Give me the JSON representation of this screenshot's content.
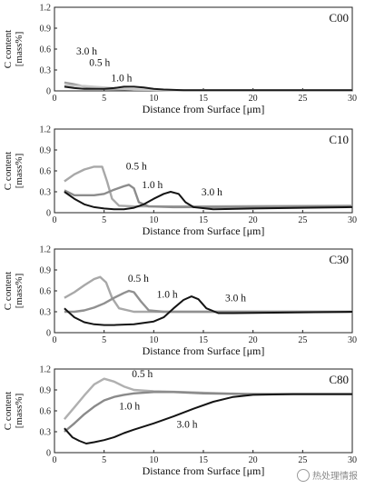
{
  "figure": {
    "watermark": "热处理情报"
  },
  "chart_data": [
    {
      "type": "line",
      "title": "C00",
      "xlabel": "Distance from Surface [μm]",
      "ylabel": [
        "C content",
        "[mass%]"
      ],
      "xlim": [
        0,
        30
      ],
      "ylim": [
        0,
        1.2
      ],
      "xticks": [
        0,
        5,
        10,
        15,
        20,
        25,
        30
      ],
      "yticks": [
        0,
        0.3,
        0.6,
        0.9,
        1.2
      ],
      "series": [
        {
          "name": "0.5 h",
          "color": "#9e9e9e",
          "points": [
            [
              1,
              0.12
            ],
            [
              1.8,
              0.1
            ],
            [
              2.5,
              0.08
            ],
            [
              3,
              0.06
            ],
            [
              3.5,
              0.05
            ],
            [
              4,
              0.04
            ],
            [
              5,
              0.03
            ],
            [
              8,
              0.02
            ],
            [
              12,
              0.01
            ],
            [
              30,
              0.01
            ]
          ]
        },
        {
          "name": "1.0 h",
          "color": "#c8c8c8",
          "points": [
            [
              1,
              0.08
            ],
            [
              2,
              0.07
            ],
            [
              3,
              0.07
            ],
            [
              4,
              0.06
            ],
            [
              5,
              0.05
            ],
            [
              6,
              0.04
            ],
            [
              8,
              0.02
            ],
            [
              12,
              0.01
            ],
            [
              30,
              0.01
            ]
          ]
        },
        {
          "name": "3.0 h",
          "color": "#1a1a1a",
          "points": [
            [
              1,
              0.06
            ],
            [
              2,
              0.04
            ],
            [
              3,
              0.03
            ],
            [
              4,
              0.03
            ],
            [
              5,
              0.03
            ],
            [
              6,
              0.04
            ],
            [
              7,
              0.06
            ],
            [
              8,
              0.06
            ],
            [
              9,
              0.05
            ],
            [
              10,
              0.03
            ],
            [
              11,
              0.02
            ],
            [
              13,
              0.01
            ],
            [
              30,
              0.01
            ]
          ]
        }
      ],
      "annotations": [
        {
          "text": "3.0 h",
          "x": 2.2,
          "y": 0.52
        },
        {
          "text": "0.5 h",
          "x": 3.5,
          "y": 0.36
        },
        {
          "text": "1.0 h",
          "x": 5.7,
          "y": 0.14
        }
      ]
    },
    {
      "type": "line",
      "title": "C10",
      "xlabel": "Distance from Surface [μm]",
      "ylabel": [
        "C content",
        "[mass%]"
      ],
      "xlim": [
        0,
        30
      ],
      "ylim": [
        0,
        1.2
      ],
      "xticks": [
        0,
        5,
        10,
        15,
        20,
        25,
        30
      ],
      "yticks": [
        0,
        0.3,
        0.6,
        0.9,
        1.2
      ],
      "series": [
        {
          "name": "0.5 h",
          "color": "#a8a8a8",
          "points": [
            [
              1,
              0.45
            ],
            [
              2,
              0.55
            ],
            [
              3,
              0.62
            ],
            [
              4,
              0.66
            ],
            [
              4.8,
              0.66
            ],
            [
              5.3,
              0.45
            ],
            [
              5.8,
              0.2
            ],
            [
              6.5,
              0.1
            ],
            [
              8,
              0.09
            ],
            [
              15,
              0.09
            ],
            [
              30,
              0.1
            ]
          ]
        },
        {
          "name": "1.0 h",
          "color": "#8c8c8c",
          "points": [
            [
              1,
              0.32
            ],
            [
              2,
              0.25
            ],
            [
              3,
              0.25
            ],
            [
              4,
              0.25
            ],
            [
              5,
              0.27
            ],
            [
              6,
              0.33
            ],
            [
              7,
              0.38
            ],
            [
              7.5,
              0.4
            ],
            [
              8,
              0.35
            ],
            [
              8.5,
              0.15
            ],
            [
              9.5,
              0.09
            ],
            [
              12,
              0.08
            ],
            [
              30,
              0.09
            ]
          ]
        },
        {
          "name": "3.0 h",
          "color": "#141414",
          "points": [
            [
              1,
              0.3
            ],
            [
              2,
              0.2
            ],
            [
              3,
              0.12
            ],
            [
              4,
              0.08
            ],
            [
              5,
              0.06
            ],
            [
              6,
              0.05
            ],
            [
              7,
              0.05
            ],
            [
              8,
              0.07
            ],
            [
              9,
              0.12
            ],
            [
              10,
              0.2
            ],
            [
              11,
              0.27
            ],
            [
              11.7,
              0.3
            ],
            [
              12.5,
              0.27
            ],
            [
              13.2,
              0.15
            ],
            [
              14,
              0.08
            ],
            [
              16,
              0.05
            ],
            [
              20,
              0.06
            ],
            [
              25,
              0.07
            ],
            [
              30,
              0.08
            ]
          ]
        }
      ],
      "annotations": [
        {
          "text": "0.5 h",
          "x": 7.2,
          "y": 0.62
        },
        {
          "text": "1.0 h",
          "x": 8.8,
          "y": 0.35
        },
        {
          "text": "3.0 h",
          "x": 14.8,
          "y": 0.25
        }
      ]
    },
    {
      "type": "line",
      "title": "C30",
      "xlabel": "Distance from Surface [μm]",
      "ylabel": [
        "C content",
        "[mass%]"
      ],
      "xlim": [
        0,
        30
      ],
      "ylim": [
        0,
        1.2
      ],
      "xticks": [
        0,
        5,
        10,
        15,
        20,
        25,
        30
      ],
      "yticks": [
        0,
        0.3,
        0.6,
        0.9,
        1.2
      ],
      "series": [
        {
          "name": "0.5 h",
          "color": "#a8a8a8",
          "points": [
            [
              1,
              0.5
            ],
            [
              2,
              0.58
            ],
            [
              3,
              0.68
            ],
            [
              4,
              0.77
            ],
            [
              4.6,
              0.8
            ],
            [
              5.2,
              0.72
            ],
            [
              5.8,
              0.5
            ],
            [
              6.5,
              0.35
            ],
            [
              8,
              0.3
            ],
            [
              15,
              0.3
            ],
            [
              30,
              0.3
            ]
          ]
        },
        {
          "name": "1.0 h",
          "color": "#909090",
          "points": [
            [
              1,
              0.3
            ],
            [
              2,
              0.3
            ],
            [
              3,
              0.32
            ],
            [
              4,
              0.36
            ],
            [
              5,
              0.42
            ],
            [
              6,
              0.5
            ],
            [
              7,
              0.57
            ],
            [
              7.5,
              0.6
            ],
            [
              8,
              0.58
            ],
            [
              8.7,
              0.45
            ],
            [
              9.5,
              0.32
            ],
            [
              11,
              0.3
            ],
            [
              30,
              0.3
            ]
          ]
        },
        {
          "name": "3.0 h",
          "color": "#141414",
          "points": [
            [
              1,
              0.35
            ],
            [
              2,
              0.22
            ],
            [
              3,
              0.15
            ],
            [
              4,
              0.12
            ],
            [
              5,
              0.11
            ],
            [
              6,
              0.11
            ],
            [
              8,
              0.12
            ],
            [
              10,
              0.16
            ],
            [
              11,
              0.22
            ],
            [
              12,
              0.35
            ],
            [
              13,
              0.47
            ],
            [
              13.8,
              0.52
            ],
            [
              14.5,
              0.48
            ],
            [
              15.3,
              0.35
            ],
            [
              16.5,
              0.28
            ],
            [
              18,
              0.28
            ],
            [
              30,
              0.3
            ]
          ]
        }
      ],
      "annotations": [
        {
          "text": "0.5 h",
          "x": 7.4,
          "y": 0.73
        },
        {
          "text": "1.0 h",
          "x": 10.3,
          "y": 0.5
        },
        {
          "text": "3.0 h",
          "x": 17.2,
          "y": 0.45
        }
      ]
    },
    {
      "type": "line",
      "title": "C80",
      "xlabel": "Distance from Surface [μm]",
      "ylabel": [
        "C content",
        "[mass%]"
      ],
      "xlim": [
        0,
        30
      ],
      "ylim": [
        0,
        1.2
      ],
      "xticks": [
        0,
        5,
        10,
        15,
        20,
        25,
        30
      ],
      "yticks": [
        0,
        0.3,
        0.6,
        0.9,
        1.2
      ],
      "series": [
        {
          "name": "0.5 h",
          "color": "#b0b0b0",
          "points": [
            [
              1,
              0.48
            ],
            [
              2,
              0.65
            ],
            [
              3,
              0.82
            ],
            [
              4,
              0.98
            ],
            [
              5,
              1.06
            ],
            [
              6,
              1.02
            ],
            [
              7,
              0.95
            ],
            [
              8,
              0.9
            ],
            [
              10,
              0.88
            ],
            [
              13,
              0.87
            ],
            [
              17,
              0.85
            ],
            [
              20,
              0.84
            ],
            [
              30,
              0.84
            ]
          ]
        },
        {
          "name": "1.0 h",
          "color": "#8a8a8a",
          "points": [
            [
              1,
              0.3
            ],
            [
              2,
              0.42
            ],
            [
              3,
              0.55
            ],
            [
              4,
              0.66
            ],
            [
              5,
              0.75
            ],
            [
              6,
              0.8
            ],
            [
              7,
              0.83
            ],
            [
              8,
              0.85
            ],
            [
              10,
              0.87
            ],
            [
              12,
              0.87
            ],
            [
              15,
              0.85
            ],
            [
              20,
              0.84
            ],
            [
              30,
              0.84
            ]
          ]
        },
        {
          "name": "3.0 h",
          "color": "#141414",
          "points": [
            [
              1,
              0.35
            ],
            [
              1.8,
              0.22
            ],
            [
              2.5,
              0.17
            ],
            [
              3.2,
              0.13
            ],
            [
              4,
              0.15
            ],
            [
              5,
              0.18
            ],
            [
              6,
              0.22
            ],
            [
              7,
              0.28
            ],
            [
              8,
              0.33
            ],
            [
              10,
              0.42
            ],
            [
              12,
              0.52
            ],
            [
              14,
              0.63
            ],
            [
              16,
              0.73
            ],
            [
              18,
              0.8
            ],
            [
              20,
              0.83
            ],
            [
              24,
              0.84
            ],
            [
              30,
              0.84
            ]
          ]
        }
      ],
      "annotations": [
        {
          "text": "0.5 h",
          "x": 7.8,
          "y": 1.08
        },
        {
          "text": "1.0 h",
          "x": 6.5,
          "y": 0.62
        },
        {
          "text": "3.0 h",
          "x": 12.3,
          "y": 0.36
        }
      ]
    }
  ]
}
